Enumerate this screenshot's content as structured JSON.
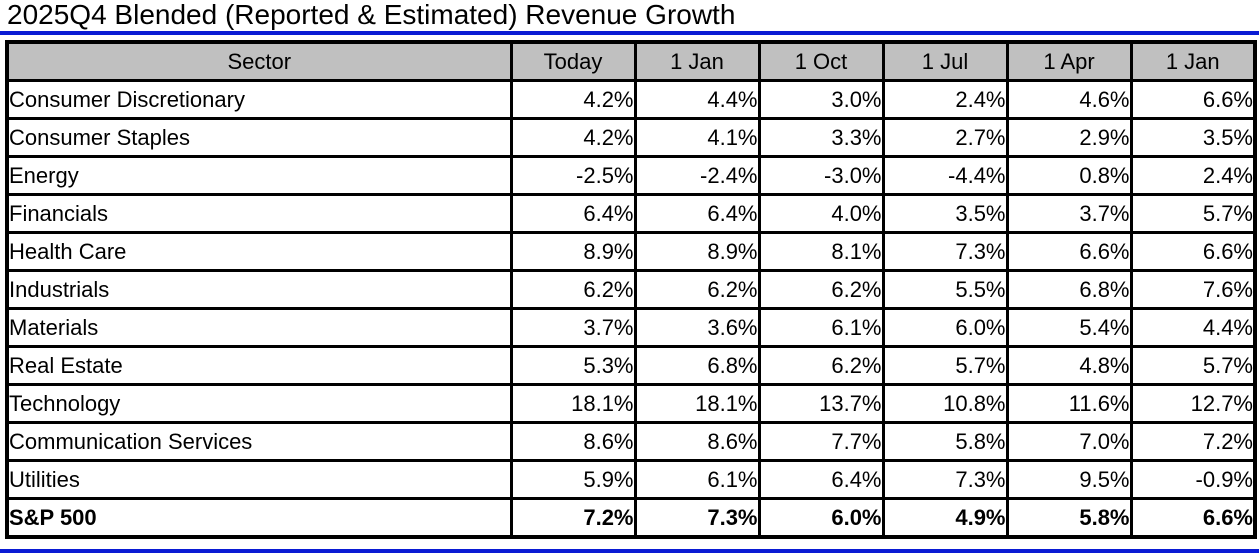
{
  "page": {
    "title": "2025Q4 Blended (Reported & Estimated) Revenue Growth"
  },
  "colors": {
    "header_bg": "#C0C0C0",
    "rule_blue": "#0A1BD4",
    "border": "#000000"
  },
  "chart_data": {
    "type": "table",
    "title": "2025Q4 Blended (Reported & Estimated) Revenue Growth",
    "columns": [
      "Sector",
      "Today",
      "1 Jan",
      "1 Oct",
      "1 Jul",
      "1 Apr",
      "1 Jan"
    ],
    "rows": [
      {
        "sector": "Consumer Discretionary",
        "values": [
          "4.2%",
          "4.4%",
          "3.0%",
          "2.4%",
          "4.6%",
          "6.6%"
        ],
        "bold": false
      },
      {
        "sector": "Consumer Staples",
        "values": [
          "4.2%",
          "4.1%",
          "3.3%",
          "2.7%",
          "2.9%",
          "3.5%"
        ],
        "bold": false
      },
      {
        "sector": "Energy",
        "values": [
          "-2.5%",
          "-2.4%",
          "-3.0%",
          "-4.4%",
          "0.8%",
          "2.4%"
        ],
        "bold": false
      },
      {
        "sector": "Financials",
        "values": [
          "6.4%",
          "6.4%",
          "4.0%",
          "3.5%",
          "3.7%",
          "5.7%"
        ],
        "bold": false
      },
      {
        "sector": "Health Care",
        "values": [
          "8.9%",
          "8.9%",
          "8.1%",
          "7.3%",
          "6.6%",
          "6.6%"
        ],
        "bold": false
      },
      {
        "sector": "Industrials",
        "values": [
          "6.2%",
          "6.2%",
          "6.2%",
          "5.5%",
          "6.8%",
          "7.6%"
        ],
        "bold": false
      },
      {
        "sector": "Materials",
        "values": [
          "3.7%",
          "3.6%",
          "6.1%",
          "6.0%",
          "5.4%",
          "4.4%"
        ],
        "bold": false
      },
      {
        "sector": "Real Estate",
        "values": [
          "5.3%",
          "6.8%",
          "6.2%",
          "5.7%",
          "4.8%",
          "5.7%"
        ],
        "bold": false
      },
      {
        "sector": "Technology",
        "values": [
          "18.1%",
          "18.1%",
          "13.7%",
          "10.8%",
          "11.6%",
          "12.7%"
        ],
        "bold": false
      },
      {
        "sector": "Communication Services",
        "values": [
          "8.6%",
          "8.6%",
          "7.7%",
          "5.8%",
          "7.0%",
          "7.2%"
        ],
        "bold": false
      },
      {
        "sector": "Utilities",
        "values": [
          "5.9%",
          "6.1%",
          "6.4%",
          "7.3%",
          "9.5%",
          "-0.9%"
        ],
        "bold": false
      },
      {
        "sector": "S&P 500",
        "values": [
          "7.2%",
          "7.3%",
          "6.0%",
          "4.9%",
          "5.8%",
          "6.6%"
        ],
        "bold": true
      }
    ],
    "layout": {
      "header_background": "#C0C0C0",
      "grid": true,
      "first_column_align": "left",
      "value_align": "right"
    }
  }
}
